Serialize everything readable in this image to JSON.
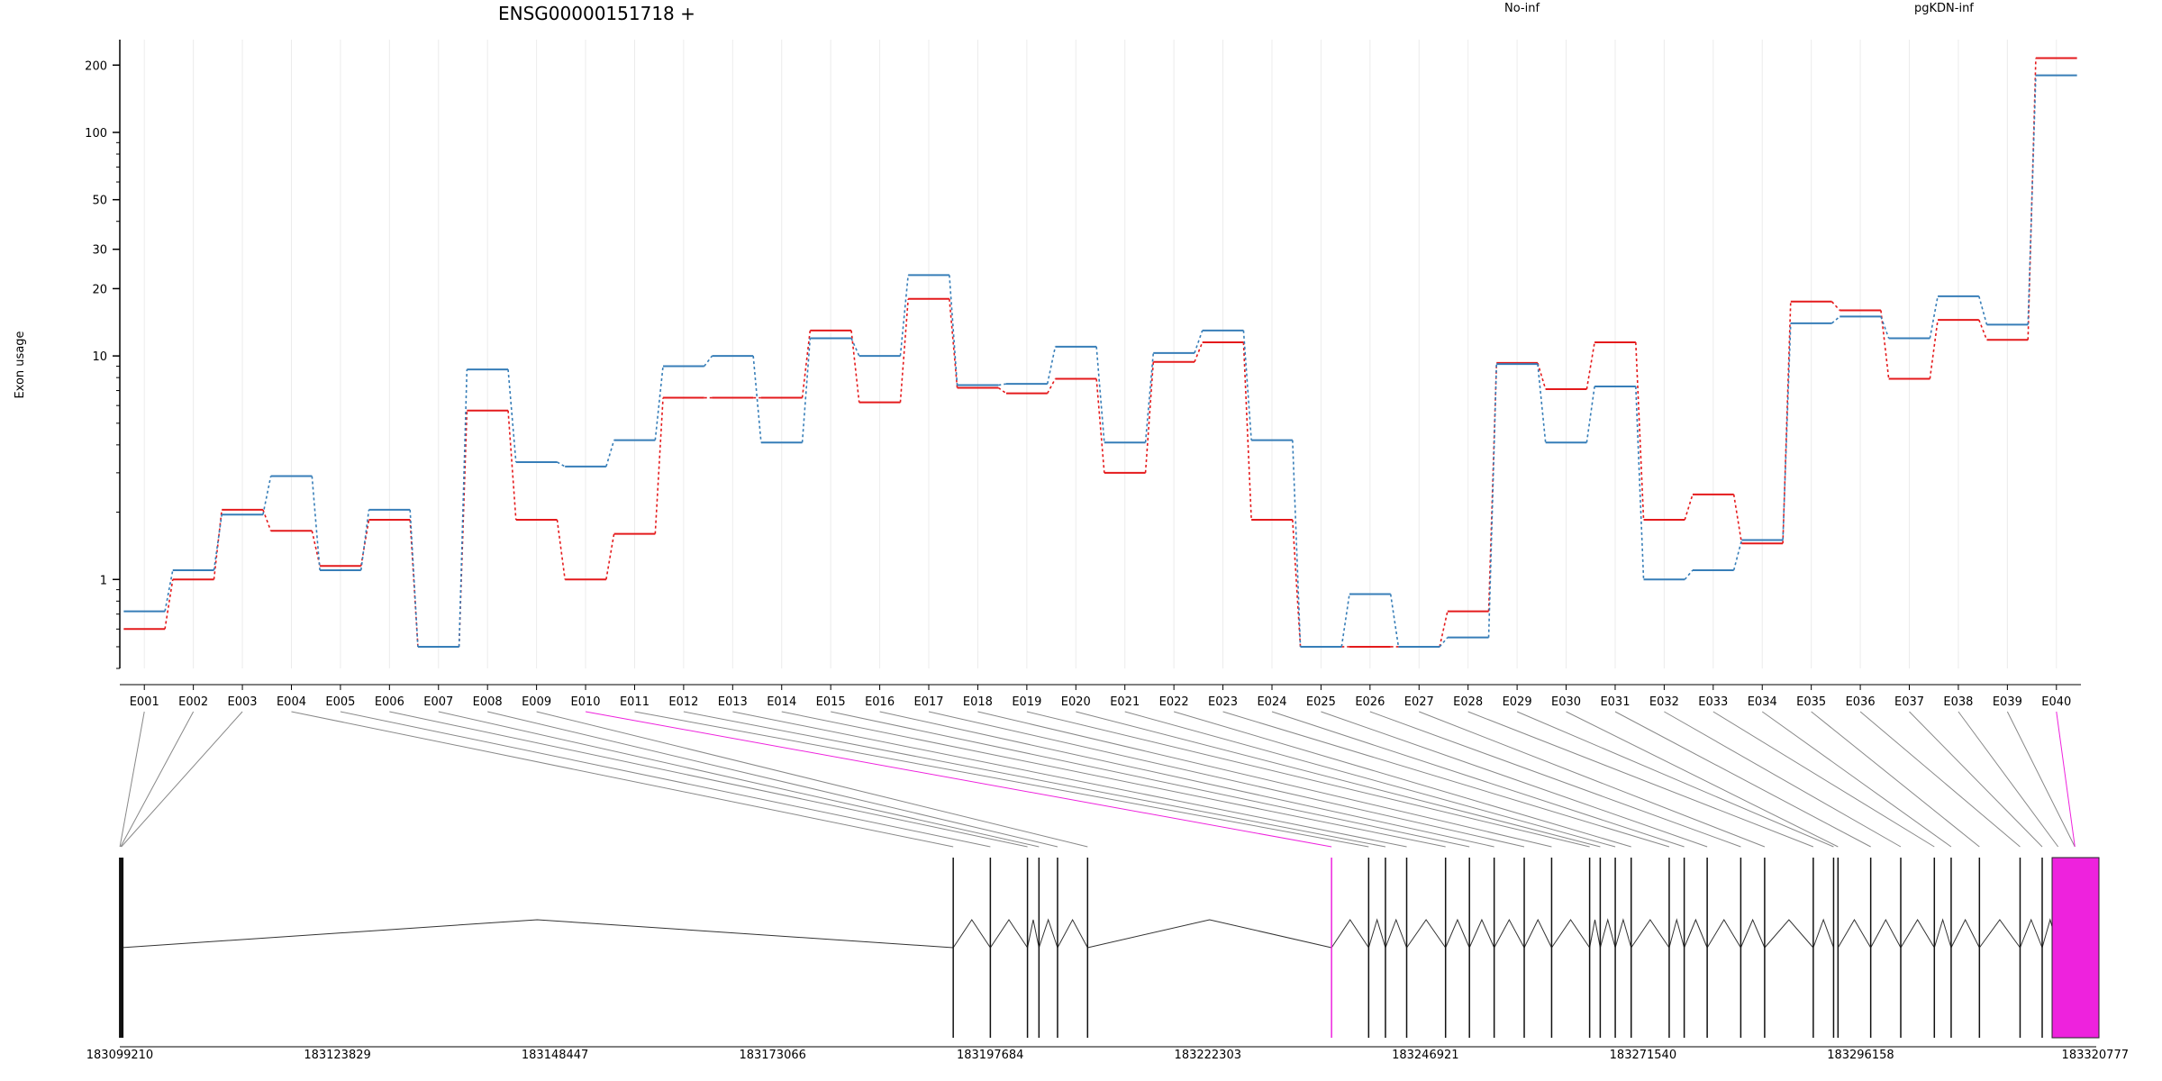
{
  "chart_data": {
    "type": "line",
    "title": "ENSG00000151718 +",
    "ylabel": "Exon usage",
    "yscale": "log",
    "ylim": [
      0.4,
      260
    ],
    "yticks": [
      1,
      10,
      20,
      30,
      50,
      100,
      200
    ],
    "grid": "vertical",
    "categories": [
      "E001",
      "E002",
      "E003",
      "E004",
      "E005",
      "E006",
      "E007",
      "E008",
      "E009",
      "E010",
      "E011",
      "E012",
      "E013",
      "E014",
      "E015",
      "E016",
      "E017",
      "E018",
      "E019",
      "E020",
      "E021",
      "E022",
      "E023",
      "E024",
      "E025",
      "E026",
      "E027",
      "E028",
      "E029",
      "E030",
      "E031",
      "E032",
      "E033",
      "E034",
      "E035",
      "E036",
      "E037",
      "E038",
      "E039",
      "E040"
    ],
    "series": [
      {
        "name": "No-inf",
        "color": "#e41a1c",
        "values": [
          0.6,
          1.0,
          2.05,
          1.65,
          1.15,
          1.85,
          0.5,
          5.7,
          1.85,
          1.0,
          1.6,
          6.5,
          6.5,
          6.5,
          13.0,
          6.2,
          18.0,
          7.2,
          6.8,
          7.9,
          3.0,
          9.4,
          11.5,
          1.85,
          0.5,
          0.5,
          0.5,
          0.72,
          9.3,
          7.1,
          11.5,
          1.85,
          2.4,
          1.45,
          17.5,
          16.0,
          7.9,
          14.5,
          11.8,
          215
        ]
      },
      {
        "name": "pgKDN-inf",
        "color": "#377eb8",
        "values": [
          0.72,
          1.1,
          1.95,
          2.9,
          1.1,
          2.05,
          0.5,
          8.7,
          3.35,
          3.2,
          4.2,
          9.0,
          10.0,
          4.1,
          12.0,
          10.0,
          23.0,
          7.4,
          7.5,
          11.0,
          4.1,
          10.3,
          13.0,
          4.2,
          0.5,
          0.86,
          0.5,
          0.55,
          9.2,
          4.1,
          7.3,
          1.0,
          1.1,
          1.5,
          14.0,
          15.0,
          12.0,
          18.5,
          13.8,
          180
        ]
      }
    ],
    "gene_model": {
      "coordinate_labels": [
        "183099210",
        "183123829",
        "183148447",
        "183173066",
        "183197684",
        "183222303",
        "183246921",
        "183271540",
        "183296158",
        "183320777"
      ],
      "coordinate_ticks": [
        183099210,
        183123829,
        183148447,
        183173066,
        183197684,
        183222303,
        183246921,
        183271540,
        183296158,
        183320777
      ],
      "exon_starts": [
        183099220,
        183099300,
        183099380,
        183193500,
        183197700,
        183201900,
        183203200,
        183205300,
        183208700,
        183236300,
        183240500,
        183242400,
        183244800,
        183249200,
        183251900,
        183254700,
        183258100,
        183261200,
        183265500,
        183266700,
        183268400,
        183270200,
        183274500,
        183276200,
        183278800,
        183282600,
        183285300,
        183290800,
        183293100,
        183293600,
        183297300,
        183300700,
        183304500,
        183306400,
        183309600,
        183314200,
        183316700,
        183318500,
        183320400,
        183320400
      ],
      "highlighted_exons": [
        "E010",
        "E040"
      ],
      "highlight_color": "#ee22dd"
    }
  }
}
